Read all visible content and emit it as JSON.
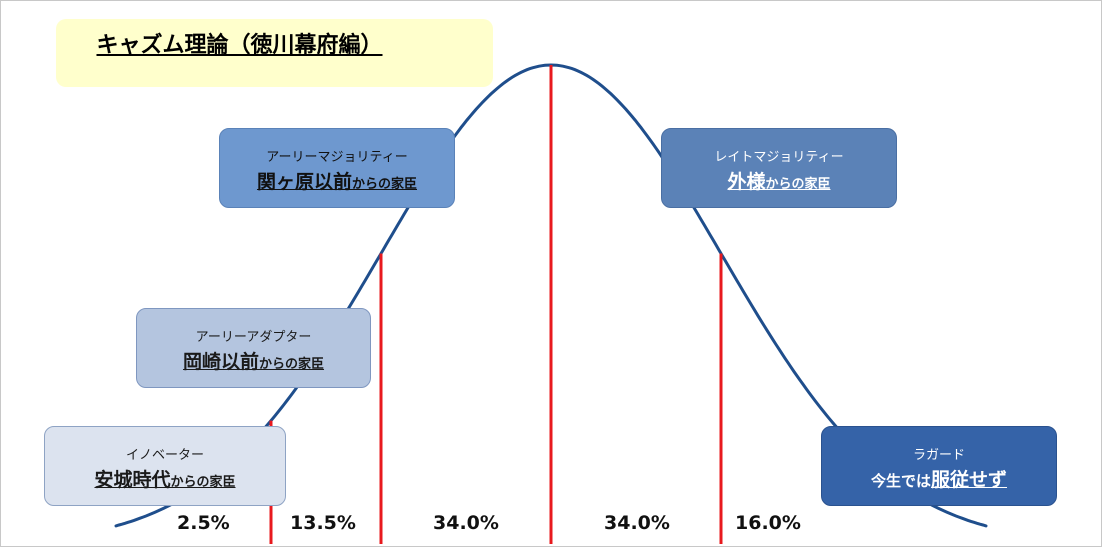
{
  "title": "キャズム理論（徳川幕府編）",
  "segments": [
    {
      "id": "innovators",
      "label": "イノベーター",
      "emph": "安城時代",
      "suffix": "からの家臣",
      "prefix": ""
    },
    {
      "id": "early_adopters",
      "label": "アーリーアダプター",
      "emph": "岡崎以前",
      "suffix": "からの家臣",
      "prefix": ""
    },
    {
      "id": "early_majority",
      "label": "アーリーマジョリティー",
      "emph": "関ヶ原以前",
      "suffix": "からの家臣",
      "prefix": ""
    },
    {
      "id": "late_majority",
      "label": "レイトマジョリティー",
      "emph": "外様",
      "suffix": "からの家臣",
      "prefix": ""
    },
    {
      "id": "laggards",
      "label": "ラガード",
      "prefix": "今生では",
      "emph": "服従せず",
      "suffix": ""
    }
  ],
  "percentages": [
    "2.5%",
    "13.5%",
    "34.0%",
    "34.0%",
    "16.0%"
  ],
  "colors": {
    "curve": "#1f4e8c",
    "divider": "#e8191e",
    "title_bg": "#ffffcc"
  }
}
